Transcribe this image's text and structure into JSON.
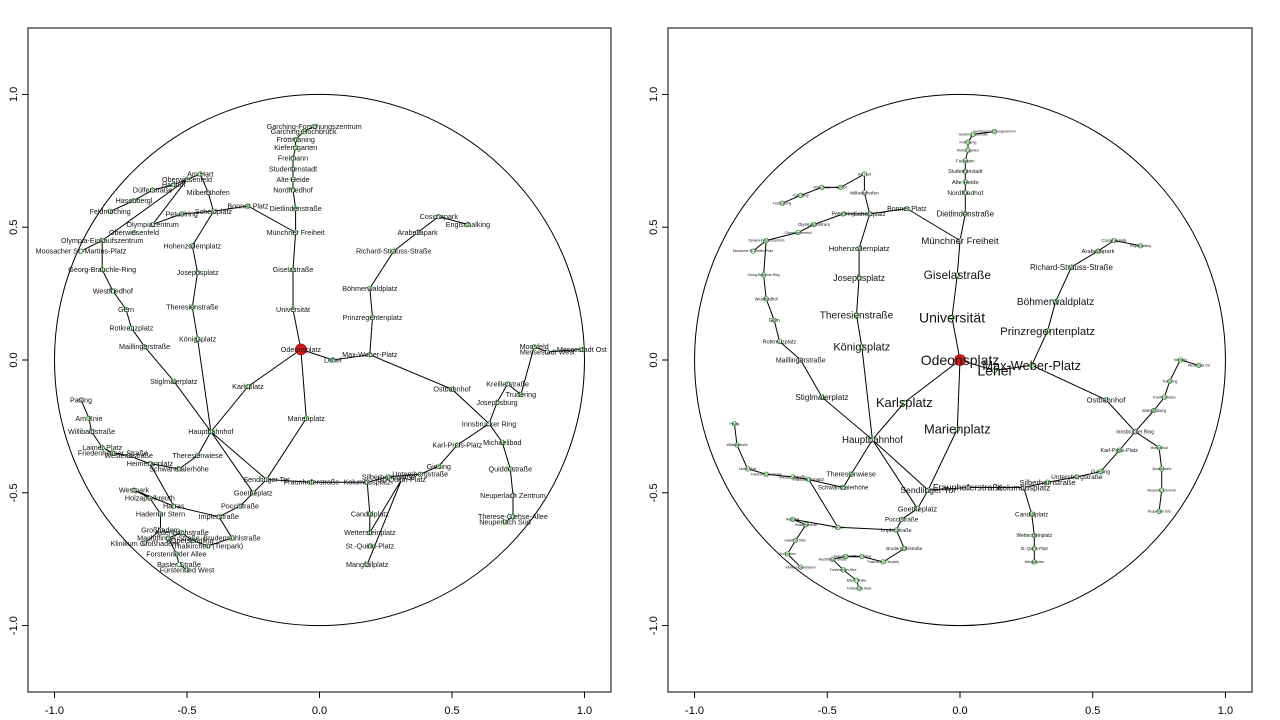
{
  "colors": {
    "station": "#2e9e2e",
    "center": "#d11a1a",
    "lines": "#000000"
  },
  "chart_data": [
    {
      "type": "network",
      "projection": "euclidean",
      "xlim": [
        -1.1,
        1.1
      ],
      "ylim": [
        -1.25,
        1.25
      ],
      "xticks": [
        "-1.0",
        "-0.5",
        "0.0",
        "0.5",
        "1.0"
      ],
      "yticks": [
        "-1.0",
        "-0.5",
        "0.0",
        "0.5",
        "1.0"
      ],
      "center": "Odeonsplatz",
      "stations": [
        {
          "name": "Garching-Forschungszentrum",
          "x": -0.02,
          "y": 0.88
        },
        {
          "name": "Garching-Hochbrück",
          "x": -0.06,
          "y": 0.86
        },
        {
          "name": "Fröttmaning",
          "x": -0.09,
          "y": 0.83
        },
        {
          "name": "Kieferngarten",
          "x": -0.09,
          "y": 0.8
        },
        {
          "name": "Freimann",
          "x": -0.1,
          "y": 0.76
        },
        {
          "name": "Studentenstadt",
          "x": -0.1,
          "y": 0.72
        },
        {
          "name": "Alte Heide",
          "x": -0.1,
          "y": 0.68
        },
        {
          "name": "Nordfriedhof",
          "x": -0.1,
          "y": 0.64
        },
        {
          "name": "Dietlindenstraße",
          "x": -0.09,
          "y": 0.57
        },
        {
          "name": "Münchner Freiheit",
          "x": -0.09,
          "y": 0.48
        },
        {
          "name": "Giselastraße",
          "x": -0.1,
          "y": 0.34
        },
        {
          "name": "Universität",
          "x": -0.1,
          "y": 0.19
        },
        {
          "name": "Odeonsplatz",
          "x": -0.07,
          "y": 0.04
        },
        {
          "name": "Lehel",
          "x": 0.05,
          "y": 0.0
        },
        {
          "name": "Max-Weber-Platz",
          "x": 0.19,
          "y": 0.02
        },
        {
          "name": "Prinzregentenplatz",
          "x": 0.2,
          "y": 0.16
        },
        {
          "name": "Böhmerwaldplatz",
          "x": 0.19,
          "y": 0.27
        },
        {
          "name": "Richard-Strauss-Straße",
          "x": 0.28,
          "y": 0.41
        },
        {
          "name": "Arabellapark",
          "x": 0.37,
          "y": 0.48
        },
        {
          "name": "Cosimapark",
          "x": 0.45,
          "y": 0.54
        },
        {
          "name": "Englschalking",
          "x": 0.56,
          "y": 0.51
        },
        {
          "name": "Messestadt Ost",
          "x": 0.99,
          "y": 0.04
        },
        {
          "name": "Messestadt West",
          "x": 0.86,
          "y": 0.03
        },
        {
          "name": "Moosfeld",
          "x": 0.81,
          "y": 0.05
        },
        {
          "name": "Trudering",
          "x": 0.76,
          "y": -0.13
        },
        {
          "name": "Kreillerstraße",
          "x": 0.71,
          "y": -0.09
        },
        {
          "name": "Josephsburg",
          "x": 0.67,
          "y": -0.16
        },
        {
          "name": "Ostbahnhof",
          "x": 0.5,
          "y": -0.11
        },
        {
          "name": "Innsbrucker Ring",
          "x": 0.64,
          "y": -0.24
        },
        {
          "name": "Karl-Preis-Platz",
          "x": 0.52,
          "y": -0.32
        },
        {
          "name": "Michaelibad",
          "x": 0.69,
          "y": -0.31
        },
        {
          "name": "Quiddestraße",
          "x": 0.72,
          "y": -0.41
        },
        {
          "name": "Neuperlach Zentrum",
          "x": 0.73,
          "y": -0.51
        },
        {
          "name": "Therese-Giehse-Allee",
          "x": 0.73,
          "y": -0.59
        },
        {
          "name": "Neuperlach Süd",
          "x": 0.7,
          "y": -0.61
        },
        {
          "name": "Giesing",
          "x": 0.45,
          "y": -0.4
        },
        {
          "name": "Untersbergstraße",
          "x": 0.38,
          "y": -0.43
        },
        {
          "name": "St.-Quirin-Platz",
          "x": 0.31,
          "y": -0.45
        },
        {
          "name": "Silberhornstraße",
          "x": 0.26,
          "y": -0.44
        },
        {
          "name": "Kolumbusplatz",
          "x": 0.18,
          "y": -0.46
        },
        {
          "name": "Candidplatz",
          "x": 0.19,
          "y": -0.58
        },
        {
          "name": "Wettersteinplatz",
          "x": 0.19,
          "y": -0.65
        },
        {
          "name": "St.-Quirin-Platz",
          "x": 0.19,
          "y": -0.7
        },
        {
          "name": "Mangfallplatz",
          "x": 0.18,
          "y": -0.77
        },
        {
          "name": "Fraunhoferstraße",
          "x": -0.03,
          "y": -0.46
        },
        {
          "name": "Sendlinger Tor",
          "x": -0.2,
          "y": -0.45
        },
        {
          "name": "Marienplatz",
          "x": -0.05,
          "y": -0.22
        },
        {
          "name": "Karlsplatz",
          "x": -0.27,
          "y": -0.1
        },
        {
          "name": "Hauptbahnhof",
          "x": -0.41,
          "y": -0.27
        },
        {
          "name": "Königsplatz",
          "x": -0.46,
          "y": 0.08
        },
        {
          "name": "Theresienstraße",
          "x": -0.48,
          "y": 0.2
        },
        {
          "name": "Josephsplatz",
          "x": -0.46,
          "y": 0.33
        },
        {
          "name": "Hohenzollernplatz",
          "x": -0.48,
          "y": 0.43
        },
        {
          "name": "Scheidplatz",
          "x": -0.4,
          "y": 0.56
        },
        {
          "name": "Bonner Platz",
          "x": -0.27,
          "y": 0.58
        },
        {
          "name": "Milbertshofen",
          "x": -0.42,
          "y": 0.63
        },
        {
          "name": "Oberwiesenfeld",
          "x": -0.5,
          "y": 0.68
        },
        {
          "name": "Am Hart",
          "x": -0.45,
          "y": 0.7
        },
        {
          "name": "Harthof",
          "x": -0.55,
          "y": 0.66
        },
        {
          "name": "Dülferstraße",
          "x": -0.63,
          "y": 0.64
        },
        {
          "name": "Hasenbergl",
          "x": -0.7,
          "y": 0.6
        },
        {
          "name": "Feldmoching",
          "x": -0.79,
          "y": 0.56
        },
        {
          "name": "Petuelring",
          "x": -0.52,
          "y": 0.55
        },
        {
          "name": "Olympiazentrum",
          "x": -0.63,
          "y": 0.51
        },
        {
          "name": "Oberwiesenfeld",
          "x": -0.7,
          "y": 0.48
        },
        {
          "name": "Olympia-Einkaufszentrum",
          "x": -0.82,
          "y": 0.45
        },
        {
          "name": "Moosacher St.-Martins-Platz",
          "x": -0.9,
          "y": 0.41
        },
        {
          "name": "Georg-Brauchle-Ring",
          "x": -0.82,
          "y": 0.34
        },
        {
          "name": "Westfriedhof",
          "x": -0.78,
          "y": 0.26
        },
        {
          "name": "Gern",
          "x": -0.73,
          "y": 0.19
        },
        {
          "name": "Rotkreuzplatz",
          "x": -0.71,
          "y": 0.12
        },
        {
          "name": "Maillingerstraße",
          "x": -0.66,
          "y": 0.05
        },
        {
          "name": "Stiglmaierplatz",
          "x": -0.55,
          "y": -0.08
        },
        {
          "name": "Theresienwiese",
          "x": -0.46,
          "y": -0.36
        },
        {
          "name": "Schwanthalerhöhe",
          "x": -0.53,
          "y": -0.41
        },
        {
          "name": "Heimeranplatz",
          "x": -0.64,
          "y": -0.39
        },
        {
          "name": "Westendstraße",
          "x": -0.72,
          "y": -0.36
        },
        {
          "name": "Friedenheimer Straße",
          "x": -0.78,
          "y": -0.35
        },
        {
          "name": "Laimer Platz",
          "x": -0.82,
          "y": -0.33
        },
        {
          "name": "Willibaldstraße",
          "x": -0.86,
          "y": -0.27
        },
        {
          "name": "Am Knie",
          "x": -0.87,
          "y": -0.22
        },
        {
          "name": "Pasing",
          "x": -0.9,
          "y": -0.15
        },
        {
          "name": "Westpark",
          "x": -0.7,
          "y": -0.49
        },
        {
          "name": "Holzapfelkreuth",
          "x": -0.64,
          "y": -0.52
        },
        {
          "name": "Haderner Stern",
          "x": -0.6,
          "y": -0.58
        },
        {
          "name": "Großhadern",
          "x": -0.6,
          "y": -0.64
        },
        {
          "name": "Klinikum Großhadern",
          "x": -0.66,
          "y": -0.69
        },
        {
          "name": "Harras",
          "x": -0.55,
          "y": -0.55
        },
        {
          "name": "Implerstraße",
          "x": -0.38,
          "y": -0.59
        },
        {
          "name": "Poccistraße",
          "x": -0.3,
          "y": -0.55
        },
        {
          "name": "Goetheplatz",
          "x": -0.25,
          "y": -0.5
        },
        {
          "name": "Brudermühlstraße",
          "x": -0.33,
          "y": -0.67
        },
        {
          "name": "Thalkirchen (Tierpark)",
          "x": -0.42,
          "y": -0.7
        },
        {
          "name": "Obersendling",
          "x": -0.48,
          "y": -0.68
        },
        {
          "name": "Aidenbachstraße",
          "x": -0.52,
          "y": -0.65
        },
        {
          "name": "Machtlfinger Straße",
          "x": -0.57,
          "y": -0.67
        },
        {
          "name": "Forstenrieder Allee",
          "x": -0.54,
          "y": -0.73
        },
        {
          "name": "Basler Straße",
          "x": -0.53,
          "y": -0.77
        },
        {
          "name": "Fürstenried West",
          "x": -0.5,
          "y": -0.79
        }
      ]
    },
    {
      "type": "network",
      "projection": "hyperbolic fisheye",
      "xlim": [
        -1.1,
        1.1
      ],
      "ylim": [
        -1.25,
        1.25
      ],
      "xticks": [
        "-1.0",
        "-0.5",
        "0.0",
        "0.5",
        "1.0"
      ],
      "yticks": [
        "-1.0",
        "-0.5",
        "0.0",
        "0.5",
        "1.0"
      ],
      "center": "Odeonsplatz",
      "stations": [
        {
          "name": "Garching-Forschungszentrum",
          "x": 0.13,
          "y": 0.86
        },
        {
          "name": "Garching-Hochbrück",
          "x": 0.05,
          "y": 0.85
        },
        {
          "name": "Fröttmaning",
          "x": 0.03,
          "y": 0.82
        },
        {
          "name": "Kieferngarten",
          "x": 0.03,
          "y": 0.79
        },
        {
          "name": "Freimann",
          "x": 0.02,
          "y": 0.75
        },
        {
          "name": "Studentenstadt",
          "x": 0.02,
          "y": 0.71
        },
        {
          "name": "Alte Heide",
          "x": 0.02,
          "y": 0.67
        },
        {
          "name": "Nordfriedhof",
          "x": 0.02,
          "y": 0.63
        },
        {
          "name": "Dietlindenstraße",
          "x": 0.02,
          "y": 0.55
        },
        {
          "name": "Münchner Freiheit",
          "x": 0.0,
          "y": 0.45
        },
        {
          "name": "Giselastraße",
          "x": -0.01,
          "y": 0.32
        },
        {
          "name": "Universität",
          "x": -0.03,
          "y": 0.16
        },
        {
          "name": "Odeonsplatz",
          "x": 0.0,
          "y": 0.0
        },
        {
          "name": "Lehel",
          "x": 0.13,
          "y": -0.04
        },
        {
          "name": "Max-Weber-Platz",
          "x": 0.27,
          "y": -0.02
        },
        {
          "name": "Prinzregentenplatz",
          "x": 0.33,
          "y": 0.11
        },
        {
          "name": "Böhmerwaldplatz",
          "x": 0.36,
          "y": 0.22
        },
        {
          "name": "Richard-Strauss-Straße",
          "x": 0.42,
          "y": 0.35
        },
        {
          "name": "Arabellapark",
          "x": 0.52,
          "y": 0.41
        },
        {
          "name": "Cosimapark",
          "x": 0.58,
          "y": 0.45
        },
        {
          "name": "Englschalking",
          "x": 0.68,
          "y": 0.43
        },
        {
          "name": "Messestadt Ost",
          "x": 0.9,
          "y": -0.02
        },
        {
          "name": "Moosfeld",
          "x": 0.83,
          "y": 0.0
        },
        {
          "name": "Trudering",
          "x": 0.79,
          "y": -0.08
        },
        {
          "name": "Kreillerstraße",
          "x": 0.77,
          "y": -0.14
        },
        {
          "name": "Josephsburg",
          "x": 0.73,
          "y": -0.19
        },
        {
          "name": "Ostbahnhof",
          "x": 0.55,
          "y": -0.15
        },
        {
          "name": "Innsbrucker Ring",
          "x": 0.66,
          "y": -0.27
        },
        {
          "name": "Karl-Preis-Platz",
          "x": 0.6,
          "y": -0.34
        },
        {
          "name": "Michaelibad",
          "x": 0.75,
          "y": -0.33
        },
        {
          "name": "Quiddestraße",
          "x": 0.76,
          "y": -0.41
        },
        {
          "name": "Neuperlach Zentrum",
          "x": 0.76,
          "y": -0.49
        },
        {
          "name": "Neuperlach Süd",
          "x": 0.75,
          "y": -0.57
        },
        {
          "name": "Giesing",
          "x": 0.53,
          "y": -0.42
        },
        {
          "name": "Untersbergstraße",
          "x": 0.44,
          "y": -0.44
        },
        {
          "name": "Silberhornstraße",
          "x": 0.33,
          "y": -0.46
        },
        {
          "name": "Kolumbusplatz",
          "x": 0.24,
          "y": -0.48
        },
        {
          "name": "Candidplatz",
          "x": 0.27,
          "y": -0.58
        },
        {
          "name": "Wettersteinplatz",
          "x": 0.28,
          "y": -0.66
        },
        {
          "name": "St.-Quirin-Platz",
          "x": 0.28,
          "y": -0.71
        },
        {
          "name": "Mangfallplatz",
          "x": 0.28,
          "y": -0.76
        },
        {
          "name": "Fraunhoferstraße",
          "x": 0.03,
          "y": -0.48
        },
        {
          "name": "Sendlinger Tor",
          "x": -0.12,
          "y": -0.49
        },
        {
          "name": "Marienplatz",
          "x": -0.01,
          "y": -0.26
        },
        {
          "name": "Karlsplatz",
          "x": -0.21,
          "y": -0.16
        },
        {
          "name": "Hauptbahnhof",
          "x": -0.33,
          "y": -0.3
        },
        {
          "name": "Königsplatz",
          "x": -0.37,
          "y": 0.05
        },
        {
          "name": "Theresienstraße",
          "x": -0.39,
          "y": 0.17
        },
        {
          "name": "Josephsplatz",
          "x": -0.38,
          "y": 0.31
        },
        {
          "name": "Hohenzollernplatz",
          "x": -0.38,
          "y": 0.42
        },
        {
          "name": "Scheidplatz",
          "x": -0.34,
          "y": 0.55
        },
        {
          "name": "Bonner Platz",
          "x": -0.2,
          "y": 0.57
        },
        {
          "name": "Milbertshofen",
          "x": -0.36,
          "y": 0.63
        },
        {
          "name": "Am Hart",
          "x": -0.36,
          "y": 0.7
        },
        {
          "name": "Harthof",
          "x": -0.45,
          "y": 0.65
        },
        {
          "name": "Dülferstraße",
          "x": -0.52,
          "y": 0.65
        },
        {
          "name": "Hasenbergl",
          "x": -0.6,
          "y": 0.62
        },
        {
          "name": "Feldmoching",
          "x": -0.67,
          "y": 0.59
        },
        {
          "name": "Petuelring",
          "x": -0.44,
          "y": 0.55
        },
        {
          "name": "Olympiazentrum",
          "x": -0.55,
          "y": 0.51
        },
        {
          "name": "Oberwiesenfeld",
          "x": -0.61,
          "y": 0.48
        },
        {
          "name": "Olympia-Einkaufszentrum",
          "x": -0.73,
          "y": 0.45
        },
        {
          "name": "Moosacher St.-Martins-Platz",
          "x": -0.78,
          "y": 0.41
        },
        {
          "name": "Georg-Brauchle-Ring",
          "x": -0.74,
          "y": 0.32
        },
        {
          "name": "Westfriedhof",
          "x": -0.73,
          "y": 0.23
        },
        {
          "name": "Gern",
          "x": -0.7,
          "y": 0.15
        },
        {
          "name": "Rotkreuzplatz",
          "x": -0.68,
          "y": 0.07
        },
        {
          "name": "Maillingerstraße",
          "x": -0.6,
          "y": 0.0
        },
        {
          "name": "Stiglmaierplatz",
          "x": -0.52,
          "y": -0.14
        },
        {
          "name": "Theresienwiese",
          "x": -0.41,
          "y": -0.43
        },
        {
          "name": "Schwanthalerhöhe",
          "x": -0.44,
          "y": -0.48
        },
        {
          "name": "Heimeranplatz",
          "x": -0.57,
          "y": -0.45
        },
        {
          "name": "Westendstraße",
          "x": -0.63,
          "y": -0.44
        },
        {
          "name": "Friedenheimer Straße",
          "x": -0.73,
          "y": -0.43
        },
        {
          "name": "Laimer Platz",
          "x": -0.8,
          "y": -0.41
        },
        {
          "name": "Willibaldstraße",
          "x": -0.84,
          "y": -0.32
        },
        {
          "name": "Pasing",
          "x": -0.85,
          "y": -0.24
        },
        {
          "name": "Westpark",
          "x": -0.63,
          "y": -0.6
        },
        {
          "name": "Holzapfelkreuth",
          "x": -0.58,
          "y": -0.62
        },
        {
          "name": "Haderner Stern",
          "x": -0.62,
          "y": -0.68
        },
        {
          "name": "Großhadern",
          "x": -0.65,
          "y": -0.73
        },
        {
          "name": "Klinikum Großhadern",
          "x": -0.6,
          "y": -0.78
        },
        {
          "name": "Harras",
          "x": -0.46,
          "y": -0.63
        },
        {
          "name": "Implerstraße",
          "x": -0.24,
          "y": -0.64
        },
        {
          "name": "Poccistraße",
          "x": -0.22,
          "y": -0.6
        },
        {
          "name": "Goetheplatz",
          "x": -0.16,
          "y": -0.56
        },
        {
          "name": "Brudermühlstraße",
          "x": -0.21,
          "y": -0.71
        },
        {
          "name": "Thalkirchen (Tierpark)",
          "x": -0.29,
          "y": -0.76
        },
        {
          "name": "Obersendling",
          "x": -0.37,
          "y": -0.74
        },
        {
          "name": "Aidenbachstraße",
          "x": -0.43,
          "y": -0.74
        },
        {
          "name": "Machtlfinger Straße",
          "x": -0.48,
          "y": -0.75
        },
        {
          "name": "Forstenrieder Allee",
          "x": -0.44,
          "y": -0.79
        },
        {
          "name": "Basler Straße",
          "x": -0.39,
          "y": -0.83
        },
        {
          "name": "Fürstenried West",
          "x": -0.38,
          "y": -0.86
        }
      ]
    }
  ]
}
